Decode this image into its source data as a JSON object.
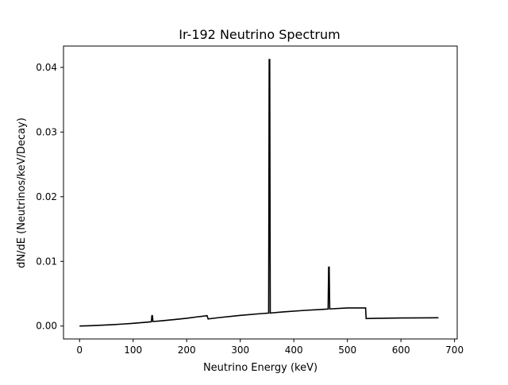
{
  "chart_data": {
    "type": "line",
    "title": "Ir-192 Neutrino Spectrum",
    "xlabel": "Neutrino Energy (keV)",
    "ylabel": "dN/dE (Neutrinos/keV/Decay)",
    "xlim": [
      -30,
      705
    ],
    "ylim": [
      -0.002,
      0.0433
    ],
    "xticks": [
      0,
      100,
      200,
      300,
      400,
      500,
      600,
      700
    ],
    "yticks": [
      0.0,
      0.01,
      0.02,
      0.03,
      0.04
    ],
    "ytick_labels": [
      "0.00",
      "0.01",
      "0.02",
      "0.03",
      "0.04"
    ],
    "grid": false,
    "legend": "none",
    "line_color": "#000000",
    "series": [
      {
        "x": [
          0,
          20,
          40,
          60,
          80,
          100,
          120,
          134,
          135,
          136,
          137,
          138,
          150,
          175,
          200,
          220,
          238,
          240,
          260,
          300,
          340,
          353,
          354,
          355,
          356,
          357,
          380,
          420,
          455,
          464,
          465,
          466,
          467,
          468,
          500,
          534,
          535,
          550,
          600,
          640,
          670
        ],
        "y": [
          0.0,
          5e-05,
          0.00012,
          0.0002,
          0.0003,
          0.00042,
          0.00056,
          0.00066,
          0.0016,
          0.0016,
          0.0007,
          0.0007,
          0.00078,
          0.00098,
          0.0012,
          0.00142,
          0.0016,
          0.0011,
          0.0013,
          0.00165,
          0.00193,
          0.002,
          0.0412,
          0.0412,
          0.002,
          0.00202,
          0.00218,
          0.00242,
          0.00258,
          0.00263,
          0.0091,
          0.0091,
          0.00265,
          0.00265,
          0.0028,
          0.0028,
          0.00115,
          0.00119,
          0.00124,
          0.00126,
          0.00127
        ]
      }
    ]
  }
}
